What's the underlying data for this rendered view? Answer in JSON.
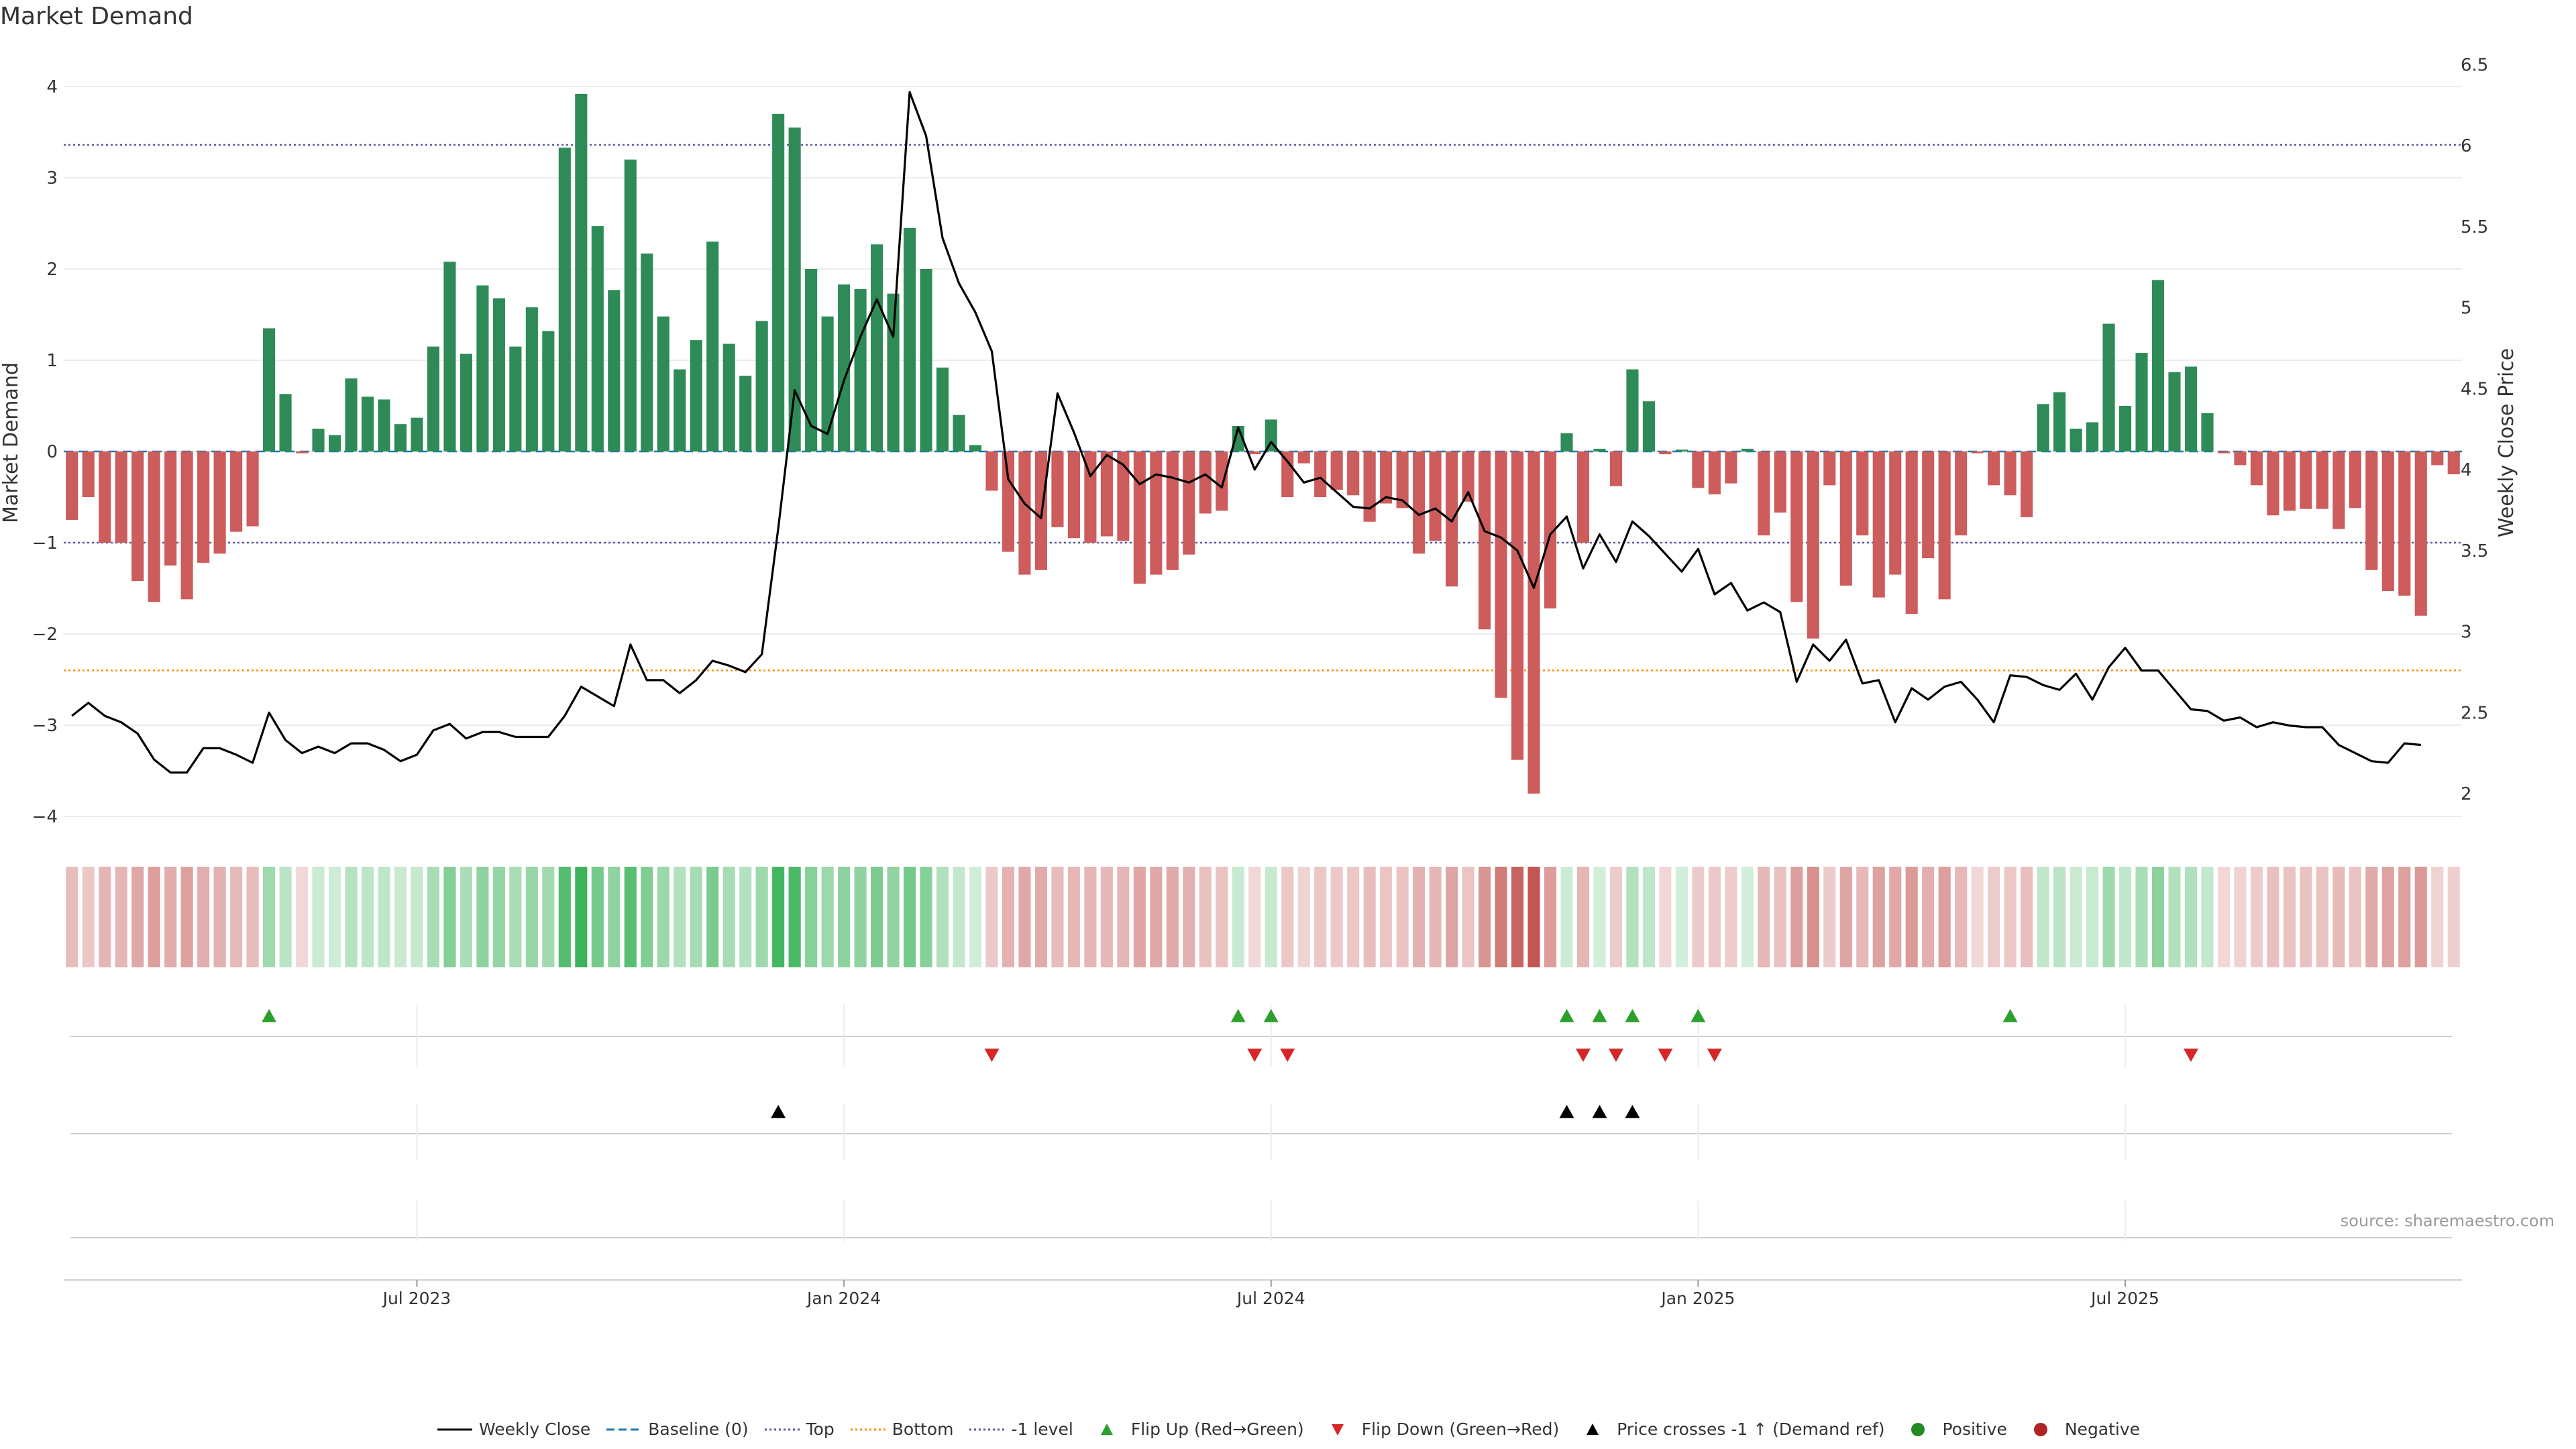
{
  "chart_data": {
    "type": "bar",
    "title": "Market Demand",
    "ylabel_left": "Market Demand",
    "ylabel_right": "Weekly Close Price",
    "ylim_left": [
      -4.4,
      4.4
    ],
    "ylim_right": [
      1.85,
      6.65
    ],
    "yticks_left": [
      "4",
      "3",
      "2",
      "1",
      "0",
      "−1",
      "−2",
      "−3",
      "−4"
    ],
    "yticks_right": [
      "6.5",
      "6",
      "5.5",
      "5",
      "4.5",
      "4",
      "3.5",
      "3",
      "2.5",
      "2"
    ],
    "x_ticks": [
      "Jul 2023",
      "Jan 2024",
      "Jul 2024",
      "Jan 2025",
      "Jul 2025"
    ],
    "x_tick_weeks": [
      21,
      47,
      73,
      99,
      125
    ],
    "reference_lines": {
      "top": 3.36,
      "bottom": -2.4,
      "minus_one": -1.0,
      "baseline": 0
    },
    "demand": [
      -0.75,
      -0.5,
      -1.0,
      -1.0,
      -1.42,
      -1.65,
      -1.25,
      -1.62,
      -1.22,
      -1.12,
      -0.88,
      -0.82,
      1.35,
      0.63,
      -0.02,
      0.25,
      0.18,
      0.8,
      0.6,
      0.57,
      0.3,
      0.37,
      1.15,
      2.08,
      1.07,
      1.82,
      1.68,
      1.15,
      1.58,
      1.32,
      3.33,
      3.92,
      2.47,
      1.77,
      3.2,
      2.17,
      1.48,
      0.9,
      1.22,
      2.3,
      1.18,
      0.83,
      1.43,
      3.7,
      3.55,
      2.0,
      1.48,
      1.83,
      1.78,
      2.27,
      1.73,
      2.45,
      2.0,
      0.92,
      0.4,
      0.07,
      -0.43,
      -1.1,
      -1.35,
      -1.3,
      -0.83,
      -0.95,
      -1.0,
      -0.93,
      -0.98,
      -1.45,
      -1.35,
      -1.3,
      -1.13,
      -0.68,
      -0.65,
      0.28,
      -0.03,
      0.35,
      -0.5,
      -0.13,
      -0.5,
      -0.42,
      -0.48,
      -0.77,
      -0.57,
      -0.62,
      -1.12,
      -0.98,
      -1.48,
      -0.55,
      -1.95,
      -2.7,
      -3.38,
      -3.75,
      -1.72,
      0.2,
      -1.0,
      0.03,
      -0.38,
      0.9,
      0.55,
      -0.03,
      0.02,
      -0.4,
      -0.47,
      -0.35,
      0.03,
      -0.92,
      -0.67,
      -1.65,
      -2.05,
      -0.37,
      -1.47,
      -0.92,
      -1.6,
      -1.35,
      -1.78,
      -1.17,
      -1.62,
      -0.92,
      -0.02,
      -0.37,
      -0.48,
      -0.72,
      0.52,
      0.65,
      0.25,
      0.32,
      1.4,
      0.5,
      1.08,
      1.88,
      0.87,
      0.93,
      0.42,
      -0.02,
      -0.15,
      -0.37,
      -0.7,
      -0.65,
      -0.63,
      -0.63,
      -0.85,
      -0.62,
      -1.3,
      -1.53,
      -1.58,
      -1.8,
      -0.15,
      -0.25
    ],
    "weekly_close": [
      2.48,
      2.56,
      2.48,
      2.44,
      2.37,
      2.21,
      2.13,
      2.13,
      2.28,
      2.28,
      2.24,
      2.19,
      2.5,
      2.33,
      2.25,
      2.29,
      2.25,
      2.31,
      2.31,
      2.27,
      2.2,
      2.24,
      2.39,
      2.43,
      2.34,
      2.38,
      2.38,
      2.35,
      2.35,
      2.35,
      2.48,
      2.66,
      2.6,
      2.54,
      2.92,
      2.7,
      2.7,
      2.62,
      2.7,
      2.82,
      2.79,
      2.75,
      2.86,
      3.64,
      4.49,
      4.27,
      4.22,
      4.55,
      4.82,
      5.05,
      4.82,
      6.33,
      6.06,
      5.43,
      5.15,
      4.97,
      4.73,
      3.94,
      3.79,
      3.7,
      4.47,
      4.23,
      3.96,
      4.09,
      4.03,
      3.91,
      3.97,
      3.95,
      3.92,
      3.97,
      3.89,
      4.26,
      4.0,
      4.17,
      4.05,
      3.92,
      3.95,
      3.86,
      3.77,
      3.76,
      3.83,
      3.81,
      3.72,
      3.76,
      3.68,
      3.86,
      3.62,
      3.58,
      3.5,
      3.27,
      3.6,
      3.71,
      3.39,
      3.6,
      3.43,
      3.68,
      3.59,
      3.48,
      3.37,
      3.51,
      3.23,
      3.3,
      3.13,
      3.18,
      3.12,
      2.69,
      2.92,
      2.82,
      2.95,
      2.68,
      2.7,
      2.44,
      2.65,
      2.58,
      2.66,
      2.69,
      2.58,
      2.44,
      2.73,
      2.72,
      2.67,
      2.64,
      2.74,
      2.58,
      2.78,
      2.9,
      2.76,
      2.76,
      2.64,
      2.52,
      2.51,
      2.45,
      2.47,
      2.41,
      2.44,
      2.42,
      2.41,
      2.41,
      2.3,
      2.25,
      2.2,
      2.19,
      2.31,
      2.3
    ],
    "flip_up_weeks": [
      12,
      71,
      73,
      91,
      93,
      95,
      99,
      118
    ],
    "flip_down_weeks": [
      56,
      72,
      74,
      92,
      94,
      97,
      100,
      129
    ],
    "price_cross_weeks": [
      43,
      91,
      93,
      95
    ],
    "legend": [
      {
        "label": "Weekly Close",
        "symbol": "line",
        "color": "#000000"
      },
      {
        "label": "Baseline (0)",
        "symbol": "dash",
        "color": "#1f77b4"
      },
      {
        "label": "Top",
        "symbol": "dot",
        "color": "#5a5aa0"
      },
      {
        "label": "Bottom",
        "symbol": "dot",
        "color": "#ff8c00"
      },
      {
        "label": "-1 level",
        "symbol": "dot",
        "color": "#5a5aa0"
      },
      {
        "label": "Flip Up (Red→Green)",
        "symbol": "tri-up",
        "color": "#2ca02c"
      },
      {
        "label": "Flip Down (Green→Red)",
        "symbol": "tri-down",
        "color": "#d62728"
      },
      {
        "label": "Price crosses -1 ↑ (Demand ref)",
        "symbol": "tri-up",
        "color": "#000000"
      },
      {
        "label": "Positive",
        "symbol": "circle",
        "color": "#228b22"
      },
      {
        "label": "Negative",
        "symbol": "circle",
        "color": "#b22222"
      }
    ],
    "colors": {
      "positive": "#2e8b57",
      "negative": "#cd5c5c",
      "price": "#000000",
      "heat_pos": "#3cb35a",
      "heat_neg": "#c0504d"
    }
  },
  "source_note": "source: sharemaestro.com"
}
